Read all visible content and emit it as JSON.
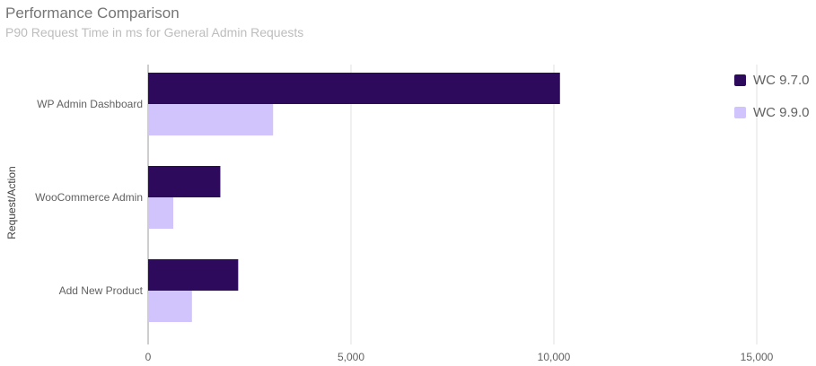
{
  "chart_data": {
    "type": "bar",
    "orientation": "horizontal",
    "title": "Performance Comparison",
    "subtitle": "P90 Request Time in ms for General Admin Requests",
    "xlabel": "",
    "ylabel": "Request/Action",
    "categories": [
      "WP Admin Dashboard",
      "WooCommerce Admin",
      "Add New Product"
    ],
    "series": [
      {
        "name": "WC 9.7.0",
        "color": "#2d0a5c",
        "values": [
          10150,
          1780,
          2220
        ]
      },
      {
        "name": "WC 9.9.0",
        "color": "#d1c4fd",
        "values": [
          3080,
          620,
          1080
        ]
      }
    ],
    "xlim": [
      0,
      17500
    ],
    "xticks": [
      0,
      5000,
      10000,
      15000
    ],
    "xtick_labels": [
      "0",
      "5,000",
      "10,000",
      "15,000"
    ],
    "grid": true,
    "legend_position": "right"
  }
}
